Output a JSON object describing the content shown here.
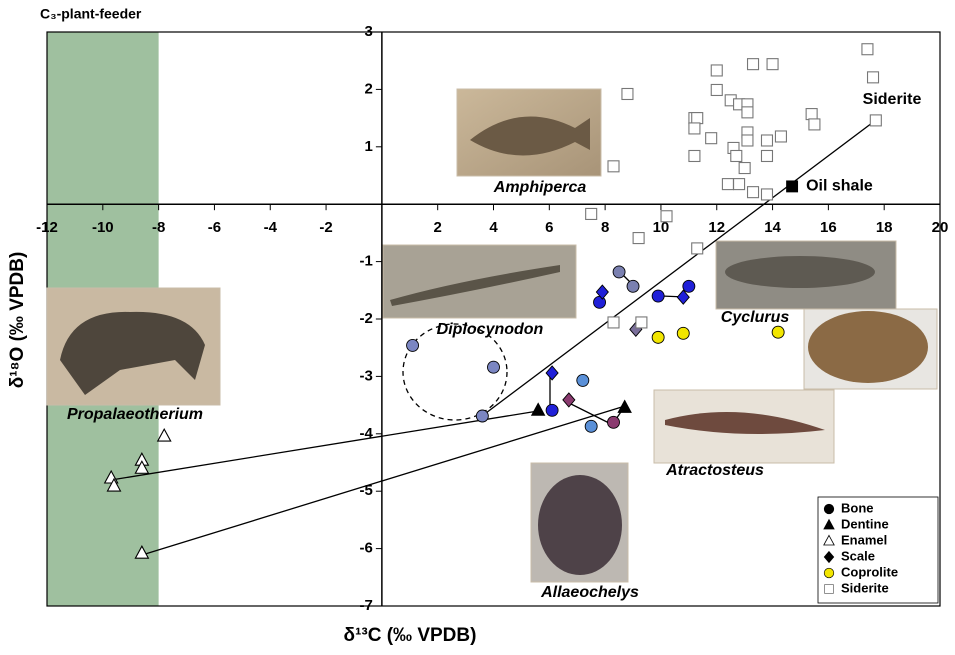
{
  "chart_data": {
    "type": "scatter",
    "xlabel": "δ¹³C (‰ VPDB)",
    "ylabel": "δ¹⁸O (‰ VPDB)",
    "xlim": [
      -12,
      20
    ],
    "ylim": [
      -7,
      3
    ],
    "xticks": [
      -12,
      -10,
      -8,
      -6,
      -4,
      -2,
      2,
      4,
      6,
      8,
      10,
      12,
      14,
      16,
      18,
      20
    ],
    "yticks": [
      3,
      2,
      1,
      -1,
      -2,
      -3,
      -4,
      -5,
      -6,
      -7
    ],
    "shaded_region": {
      "xrange": [
        -12,
        -8
      ],
      "label": "C₃-plant-feeder",
      "color": "#9fc09f"
    },
    "annotations": [
      {
        "text": "Amphiperca",
        "color": "#7466b0"
      },
      {
        "text": "Diplocynodon",
        "color": "#7b86c2"
      },
      {
        "text": "Cyclurus",
        "color": "#2020d8"
      },
      {
        "text": "Propalaeotherium",
        "color": "#4a8a3a"
      },
      {
        "text": "Atractosteus",
        "color": "#8a3a6f"
      },
      {
        "text": "Allaeochelys",
        "color": "#5a90d8"
      },
      {
        "text": "Siderite",
        "color": "#999999"
      }
    ],
    "legend": "lower right",
    "series": [
      {
        "name": "Bone",
        "marker": "circle",
        "color": "#000000",
        "point_colors": [
          "#7b86c2",
          "#7b86c2",
          "#7b86c2",
          "#7a80b0",
          "#7a80b0",
          "#2020d8",
          "#2020d8",
          "#2020d8",
          "#2020d8",
          "#5a90d8",
          "#5a90d8",
          "#8a3a6f"
        ],
        "x": [
          1.1,
          4.0,
          3.6,
          8.5,
          9.0,
          7.8,
          9.9,
          11.0,
          6.1,
          7.2,
          7.5,
          8.3
        ],
        "y": [
          -2.46,
          -2.84,
          -3.69,
          -1.18,
          -1.43,
          -1.71,
          -1.6,
          -1.43,
          -3.59,
          -3.07,
          -3.87,
          -3.8
        ]
      },
      {
        "name": "Dentine",
        "marker": "triangle",
        "color": "#000000",
        "x": [
          5.6,
          8.7
        ],
        "y": [
          -3.59,
          -3.54
        ]
      },
      {
        "name": "Enamel",
        "marker": "triangle",
        "color": "#000000",
        "open": true,
        "x": [
          -7.8,
          -9.7,
          -9.6,
          -8.6,
          -8.6,
          -8.6
        ],
        "y": [
          -4.04,
          -4.77,
          -4.91,
          -4.46,
          -4.6,
          -6.08
        ]
      },
      {
        "name": "Scale",
        "marker": "diamond",
        "color": "#000000",
        "point_colors": [
          "#2020d8",
          "#2020d8",
          "#2020d8",
          "#8a3a6f",
          "#7a6f9a"
        ],
        "x": [
          7.9,
          10.8,
          6.1,
          6.7,
          9.1
        ],
        "y": [
          -1.53,
          -1.62,
          -2.94,
          -3.41,
          -2.18
        ]
      },
      {
        "name": "Coprolite",
        "marker": "circle",
        "color": "#f2e600",
        "x": [
          9.9,
          10.8,
          14.2
        ],
        "y": [
          -2.32,
          -2.25,
          -2.23
        ]
      },
      {
        "name": "Siderite",
        "marker": "square",
        "color": "#777777",
        "open": true,
        "x": [
          17.4,
          17.6,
          17.7,
          8.8,
          12.0,
          13.3,
          14.0,
          12.0,
          12.5,
          12.8,
          11.2,
          11.3,
          11.2,
          11.8,
          13.1,
          13.1,
          13.1,
          13.1,
          12.6,
          13.8,
          14.3,
          15.4,
          15.5,
          11.2,
          12.7,
          13.0,
          13.8,
          12.4,
          12.8,
          13.3,
          13.8,
          8.3,
          7.5,
          10.2,
          9.2,
          11.3,
          8.3,
          9.3
        ],
        "y": [
          2.7,
          2.21,
          1.46,
          1.92,
          2.33,
          2.44,
          2.44,
          1.99,
          1.81,
          1.74,
          1.5,
          1.5,
          1.32,
          1.15,
          1.74,
          1.6,
          1.25,
          1.11,
          0.98,
          1.11,
          1.18,
          1.57,
          1.39,
          0.84,
          0.84,
          0.63,
          0.84,
          0.35,
          0.35,
          0.21,
          0.17,
          0.66,
          -0.17,
          -0.21,
          -0.59,
          -0.77,
          -2.06,
          -2.06
        ]
      },
      {
        "name": "Oil shale",
        "marker": "square",
        "color": "#000000",
        "in_legend": false,
        "x": [
          14.7
        ],
        "y": [
          0.31
        ]
      }
    ]
  }
}
